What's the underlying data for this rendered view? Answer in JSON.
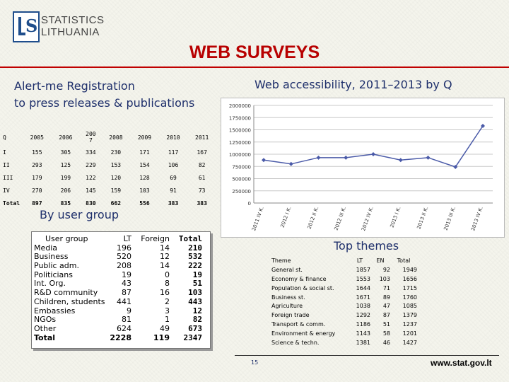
{
  "logo": {
    "line1": "STATISTICS",
    "line2": "LITHUANIA",
    "color": "#1f4e8c"
  },
  "title": "WEB SURVEYS",
  "subtitle_left": [
    "Alert-me Registration",
    "to press releases & publications"
  ],
  "subtitle_right": "Web accessibility, 2011–2013 by Q",
  "year_table": {
    "headers": [
      "Q",
      "2005",
      "2006",
      "200\n7",
      "2008",
      "2009",
      "2010",
      "2011"
    ],
    "rows": [
      [
        "I",
        "155",
        "305",
        "334",
        "230",
        "171",
        "117",
        "167"
      ],
      [
        "II",
        "293",
        "125",
        "229",
        "153",
        "154",
        "106",
        "82"
      ],
      [
        "III",
        "179",
        "199",
        "122",
        "120",
        "128",
        "69",
        "61"
      ],
      [
        "IV",
        "270",
        "206",
        "145",
        "159",
        "103",
        "91",
        "73"
      ],
      [
        "Total",
        "897",
        "835",
        "830",
        "662",
        "556",
        "383",
        "383"
      ]
    ]
  },
  "chart_data": {
    "type": "line",
    "title": "Web accessibility, 2011–2013 by Q",
    "categories": [
      "2011 IV K.",
      "2012 I K.",
      "2012 II K.",
      "2012 III K.",
      "2012 IV K.",
      "2013 I K.",
      "2013 II K.",
      "2013 III K.",
      "2013 IV K."
    ],
    "series": [
      {
        "values": [
          880000,
          800000,
          930000,
          930000,
          1000000,
          880000,
          930000,
          740000,
          1580000
        ]
      }
    ],
    "ylim": [
      0,
      2000000
    ],
    "yticks": [
      "0",
      "250000",
      "500000",
      "750000",
      "1000000",
      "1250000",
      "1500000",
      "1750000",
      "2000000"
    ],
    "grid": true,
    "line_color": "#4a5aa8"
  },
  "by_user_group": "By user group",
  "user_group": {
    "headers": [
      "User group",
      "LT",
      "Foreign",
      "Total"
    ],
    "names": [
      "Media",
      "Business",
      "Public adm.",
      "Politicians",
      "Int.  Org.",
      "R&D community",
      "Children, students",
      "Embassies",
      "NGOs",
      "Other",
      "Total"
    ],
    "lt": [
      "196",
      "520",
      "208",
      "19",
      "43",
      "87",
      "441",
      "9",
      "81",
      "624",
      "2228"
    ],
    "foreign": [
      "14",
      "12",
      "14",
      "0",
      "8",
      "16",
      "2",
      "3",
      "1",
      "49",
      "119"
    ],
    "total": [
      "210",
      "532",
      "222",
      "19",
      "51",
      "103",
      "443",
      "12",
      "82",
      "673",
      "2347"
    ]
  },
  "top_themes_title": "Top themes",
  "top_themes": {
    "headers": [
      "Theme",
      "LT",
      "EN",
      "Total"
    ],
    "rows": [
      [
        "General st.",
        "1857",
        "92",
        "1949"
      ],
      [
        "Economy & finance",
        "1553",
        "103",
        "1656"
      ],
      [
        "Population & social st.",
        "1644",
        "71",
        "1715"
      ],
      [
        "Business st.",
        "1671",
        "89",
        "1760"
      ],
      [
        "Agriculture",
        "1038",
        "47",
        "1085"
      ],
      [
        "Foreign trade",
        "1292",
        "87",
        "1379"
      ],
      [
        "Transport & comm.",
        "1186",
        "51",
        "1237"
      ],
      [
        "Environment & energy",
        "1143",
        "58",
        "1201"
      ],
      [
        "Science & techn.",
        "1381",
        "46",
        "1427"
      ]
    ]
  },
  "page_number": "15",
  "website": "www.stat.gov.lt",
  "colors": {
    "title": "#b80000",
    "headline": "#1e2f6b"
  }
}
